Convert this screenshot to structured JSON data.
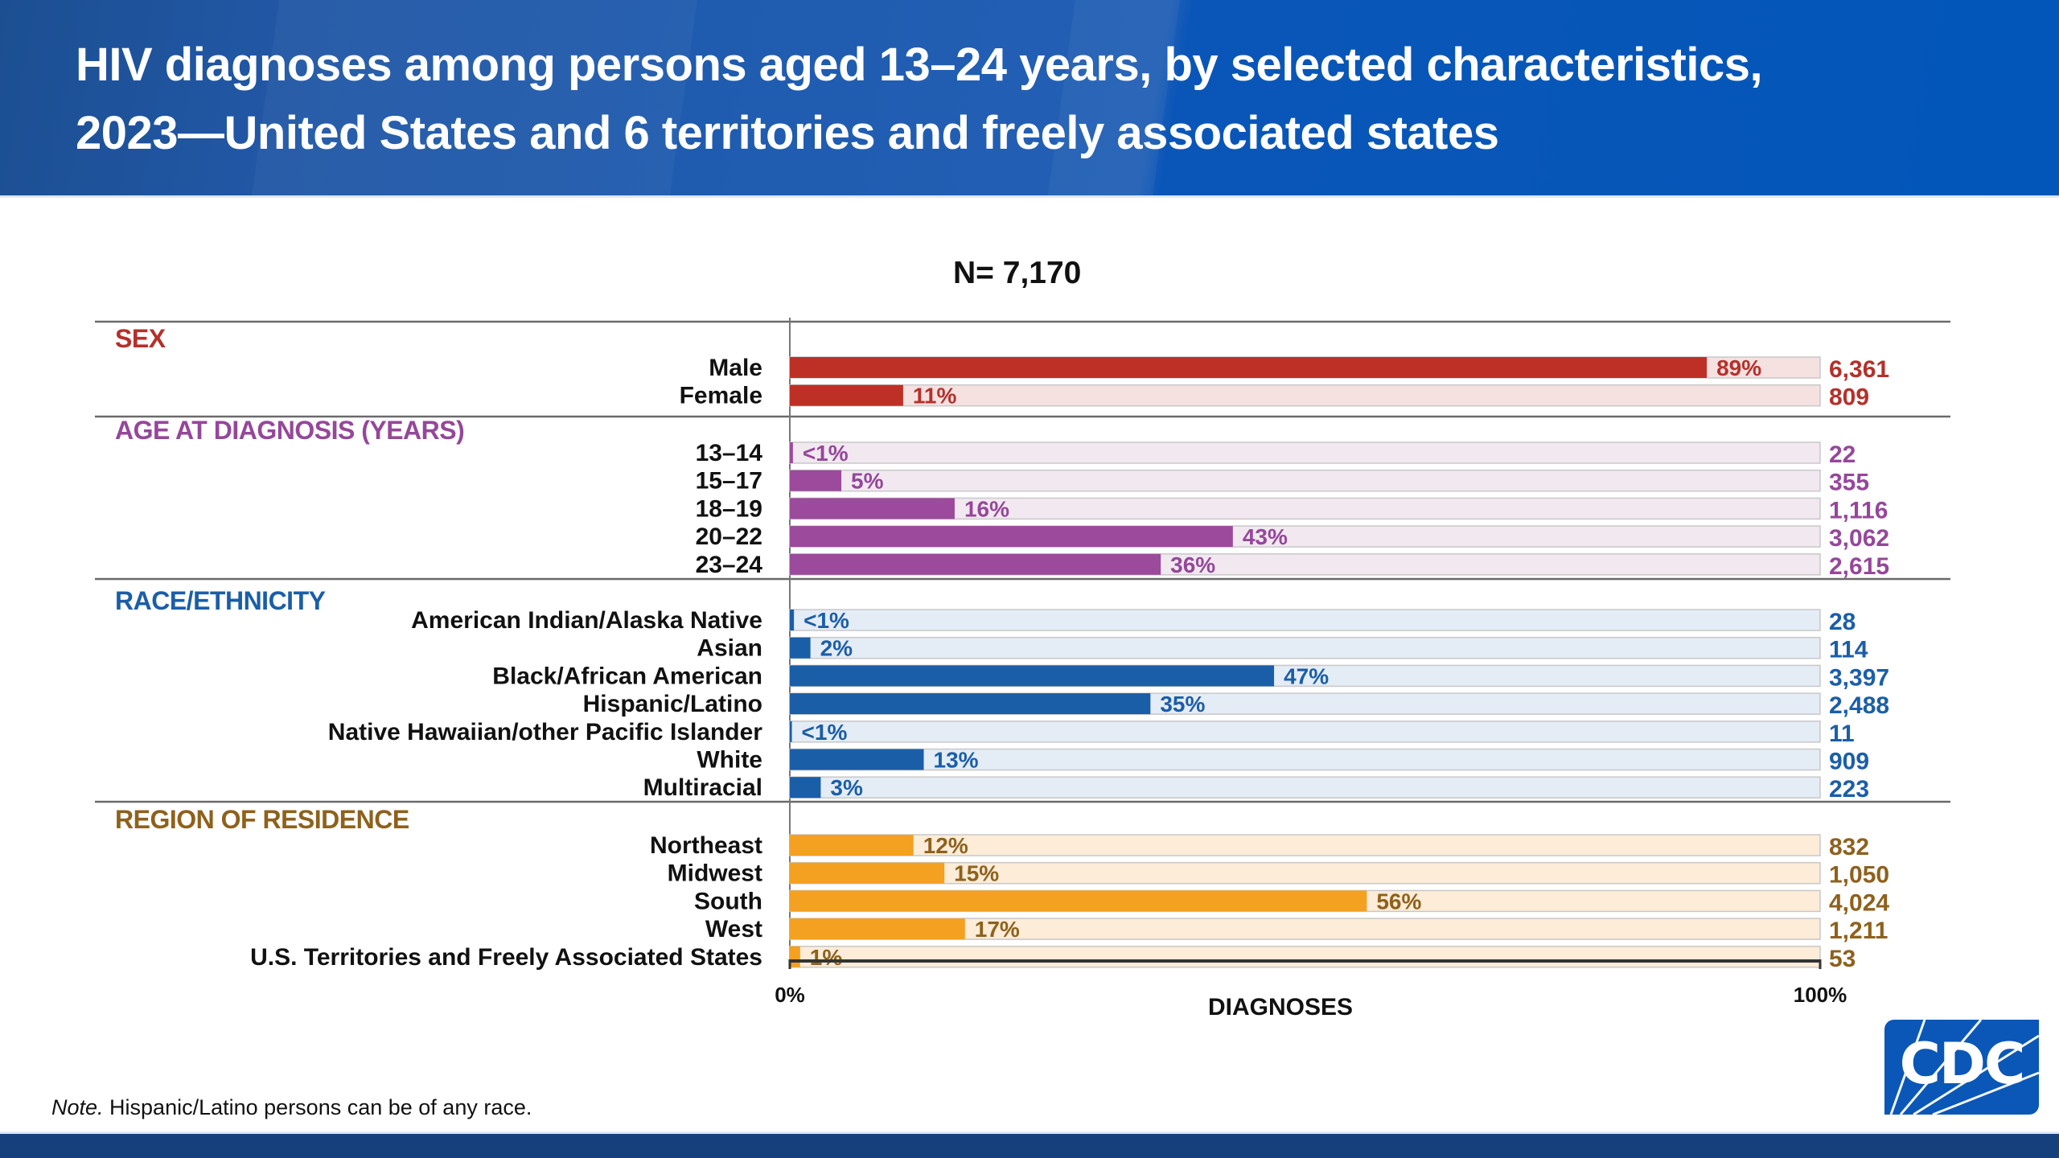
{
  "header": {
    "title_line1": "HIV diagnoses among persons aged 13–24 years, by selected characteristics,",
    "title_line2": "2023—United States and 6 territories and freely associated states"
  },
  "colors": {
    "header_blue": "#0256b9",
    "footer_blue": "#16407c",
    "sex": "#be3026",
    "sex_bg": "#f6e1e1",
    "age": "#9b4a9c",
    "age_bg": "#f1e8f0",
    "race": "#1b5ea8",
    "race_bg": "#e4ecf5",
    "region": "#f4a020",
    "region_bg": "#fcecd8",
    "region_text": "#8e611c",
    "sex_text": "#b5302a",
    "age_text": "#95479a",
    "race_text": "#1b5ea8"
  },
  "note_prefix": "Note.",
  "note_text": " Hispanic/Latino persons can be of any race.",
  "logo_text": "CDC",
  "chart_data": {
    "type": "bar",
    "orientation": "horizontal",
    "title": "N= 7,170",
    "xlabel": "DIAGNOSES",
    "ylabel": "",
    "xlim": [
      0,
      100
    ],
    "x_ticks": [
      "0%",
      "100%"
    ],
    "total": 7170,
    "grid": false,
    "legend": "none",
    "groups": [
      {
        "name": "SEX",
        "color_key": "sex",
        "categories": [
          "Male",
          "Female"
        ],
        "percent_labels": [
          "89%",
          "11%"
        ],
        "values": [
          89,
          11
        ],
        "counts": [
          "6,361",
          "809"
        ]
      },
      {
        "name": "AGE AT DIAGNOSIS (YEARS)",
        "color_key": "age",
        "categories": [
          "13–14",
          "15–17",
          "18–19",
          "20–22",
          "23–24"
        ],
        "percent_labels": [
          "<1%",
          "5%",
          "16%",
          "43%",
          "36%"
        ],
        "values": [
          0.3,
          5,
          16,
          43,
          36
        ],
        "counts": [
          "22",
          "355",
          "1,116",
          "3,062",
          "2,615"
        ]
      },
      {
        "name": "RACE/ETHNICITY",
        "color_key": "race",
        "categories": [
          "American Indian/Alaska Native",
          "Asian",
          "Black/African American",
          "Hispanic/Latino",
          "Native Hawaiian/other Pacific Islander",
          "White",
          "Multiracial"
        ],
        "percent_labels": [
          "<1%",
          "2%",
          "47%",
          "35%",
          "<1%",
          "13%",
          "3%"
        ],
        "values": [
          0.4,
          2,
          47,
          35,
          0.2,
          13,
          3
        ],
        "counts": [
          "28",
          "114",
          "3,397",
          "2,488",
          "11",
          "909",
          "223"
        ]
      },
      {
        "name": "REGION OF RESIDENCE",
        "color_key": "region",
        "categories": [
          "Northeast",
          "Midwest",
          "South",
          "West",
          "U.S. Territories and Freely Associated States"
        ],
        "percent_labels": [
          "12%",
          "15%",
          "56%",
          "17%",
          "1%"
        ],
        "values": [
          12,
          15,
          56,
          17,
          1
        ],
        "counts": [
          "832",
          "1,050",
          "4,024",
          "1,211",
          "53"
        ]
      }
    ]
  }
}
